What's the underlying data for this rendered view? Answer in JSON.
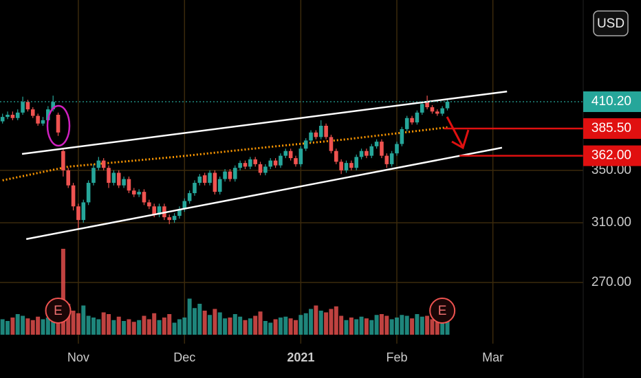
{
  "ui": {
    "currency_button": "USD"
  },
  "chart_data": {
    "type": "candlestick",
    "log_scale": true,
    "grid": true,
    "up_color": "#26a69a",
    "down_color": "#ef5350",
    "xlim": [
      -0.5,
      114.87
    ],
    "ylim": [
      234.4,
      519
    ],
    "xticks": [
      {
        "value": 15,
        "label": "Nov"
      },
      {
        "value": 36,
        "label": "Dec"
      },
      {
        "value": 59,
        "label": "2021"
      },
      {
        "value": 78,
        "label": "Feb"
      },
      {
        "value": 97,
        "label": "Mar"
      }
    ],
    "yticks": [
      {
        "value": 270,
        "label": "270.00"
      },
      {
        "value": 310,
        "label": "310.00"
      },
      {
        "value": 350,
        "label": "350.00"
      }
    ],
    "open": [
      392,
      396,
      398,
      395,
      400,
      410,
      403,
      397,
      390,
      393,
      403,
      398,
      366,
      350,
      338,
      322,
      312,
      325,
      340,
      352,
      358,
      352,
      340,
      348,
      338,
      343,
      334,
      331,
      333,
      325,
      322,
      316,
      322,
      314,
      312,
      315,
      320,
      326,
      332,
      340,
      346,
      340,
      348,
      333,
      343,
      349,
      343,
      352,
      356,
      353,
      359,
      355,
      348,
      353,
      358,
      354,
      362,
      366,
      360,
      355,
      368,
      375,
      382,
      378,
      388,
      378,
      366,
      357,
      350,
      356,
      352,
      361,
      366,
      362,
      370,
      374,
      362,
      355,
      364,
      372,
      385,
      395,
      391,
      400,
      410,
      405,
      401,
      399,
      404
    ],
    "high": [
      399,
      401,
      401,
      403,
      415,
      412,
      405,
      399,
      396,
      406,
      416,
      400,
      368,
      352,
      340,
      324,
      327,
      342,
      355,
      361,
      360,
      354,
      350,
      350,
      345,
      345,
      336,
      335,
      335,
      327,
      324,
      324,
      324,
      316,
      317,
      322,
      328,
      334,
      342,
      347,
      348,
      350,
      350,
      345,
      351,
      351,
      354,
      358,
      358,
      361,
      361,
      357,
      355,
      360,
      360,
      364,
      368,
      368,
      362,
      370,
      377,
      384,
      384,
      393,
      390,
      380,
      368,
      359,
      358,
      358,
      363,
      368,
      368,
      372,
      376,
      376,
      364,
      366,
      374,
      387,
      397,
      397,
      402,
      410,
      416,
      407,
      403,
      406,
      412
    ],
    "low": [
      390,
      394,
      393,
      393,
      398,
      401,
      395,
      388,
      388,
      391,
      401,
      379,
      345,
      336,
      319,
      306,
      310,
      323,
      338,
      350,
      350,
      336,
      338,
      336,
      336,
      332,
      329,
      329,
      323,
      320,
      314,
      314,
      312,
      309,
      310,
      313,
      318,
      324,
      330,
      338,
      338,
      338,
      331,
      331,
      341,
      341,
      341,
      350,
      351,
      351,
      353,
      346,
      346,
      351,
      352,
      352,
      360,
      358,
      353,
      353,
      366,
      373,
      376,
      376,
      376,
      364,
      355,
      347,
      348,
      350,
      350,
      359,
      360,
      360,
      368,
      360,
      352,
      353,
      362,
      370,
      383,
      389,
      389,
      398,
      403,
      399,
      397,
      397,
      402
    ],
    "close": [
      396,
      398,
      395,
      400,
      410,
      403,
      397,
      390,
      393,
      403,
      410,
      382,
      350,
      338,
      322,
      312,
      325,
      340,
      352,
      358,
      352,
      340,
      348,
      338,
      343,
      334,
      331,
      333,
      325,
      322,
      316,
      322,
      314,
      312,
      315,
      320,
      326,
      332,
      340,
      345,
      340,
      348,
      333,
      343,
      349,
      343,
      352,
      356,
      353,
      359,
      355,
      348,
      353,
      358,
      354,
      362,
      366,
      360,
      355,
      368,
      375,
      382,
      378,
      388,
      378,
      366,
      357,
      350,
      356,
      352,
      361,
      366,
      362,
      370,
      374,
      362,
      355,
      364,
      372,
      385,
      395,
      391,
      400,
      408,
      405,
      401,
      399,
      404,
      410.2
    ],
    "volume": [
      18,
      16,
      20,
      24,
      22,
      19,
      17,
      21,
      18,
      20,
      23,
      30,
      100,
      36,
      28,
      25,
      34,
      22,
      20,
      18,
      26,
      24,
      17,
      21,
      16,
      18,
      15,
      17,
      22,
      18,
      25,
      17,
      20,
      24,
      14,
      18,
      20,
      42,
      31,
      36,
      28,
      23,
      30,
      26,
      19,
      20,
      24,
      21,
      17,
      19,
      22,
      27,
      16,
      14,
      18,
      20,
      21,
      19,
      17,
      23,
      25,
      30,
      34,
      28,
      26,
      30,
      33,
      22,
      17,
      20,
      18,
      21,
      19,
      17,
      23,
      24,
      22,
      18,
      20,
      23,
      22,
      19,
      24,
      21,
      22,
      18,
      17,
      19,
      16
    ],
    "moving_average": {
      "color": "#ff9800",
      "x": [
        0,
        13,
        34,
        54,
        68,
        88
      ],
      "values": [
        342,
        353,
        361,
        370,
        376,
        386.6
      ]
    },
    "trend_lines": [
      {
        "color": "#ffffff",
        "x": [
          3.85,
          99.8
        ],
        "values": [
          363.5,
          420
        ]
      },
      {
        "color": "#ffffff",
        "x": [
          4.7,
          98.8
        ],
        "values": [
          298.5,
          368.8
        ]
      }
    ],
    "price_lines": [
      {
        "value": 410.2,
        "label": "410.20",
        "color": "#26a69a",
        "from": -0.5,
        "dashed": true
      },
      {
        "value": 385.5,
        "label": "385.50",
        "color": "#e01010",
        "from": 87.3,
        "dashed": false
      },
      {
        "value": 362,
        "label": "362.00",
        "color": "#e01010",
        "from": 90.4,
        "dashed": false
      }
    ],
    "events": [
      {
        "x": 11,
        "label": "E"
      },
      {
        "x": 87,
        "label": "E"
      }
    ]
  }
}
